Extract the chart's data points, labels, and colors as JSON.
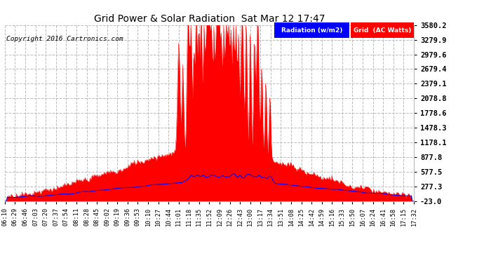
{
  "title": "Grid Power & Solar Radiation  Sat Mar 12 17:47",
  "copyright": "Copyright 2016 Cartronics.com",
  "background_color": "#ffffff",
  "plot_background": "#ffffff",
  "grid_color": "#bbbbbb",
  "ylim": [
    -23.0,
    3580.2
  ],
  "yticks": [
    -23.0,
    277.3,
    577.5,
    877.8,
    1178.1,
    1478.3,
    1778.6,
    2078.8,
    2379.1,
    2679.4,
    2979.6,
    3279.9,
    3580.2
  ],
  "solar_fill_color": "#ff0000",
  "solar_line_color": "#ff0000",
  "grid_line_color": "#0000ff",
  "legend_radiation_bg": "#0000ff",
  "legend_grid_bg": "#ff0000",
  "legend_radiation_text": "Radiation (w/m2)",
  "legend_grid_text": "Grid  (AC Watts)",
  "xtick_labels": [
    "06:10",
    "06:29",
    "06:46",
    "07:03",
    "07:20",
    "07:37",
    "07:54",
    "08:11",
    "08:28",
    "08:45",
    "09:02",
    "09:19",
    "09:36",
    "09:53",
    "10:10",
    "10:27",
    "10:44",
    "11:01",
    "11:18",
    "11:35",
    "11:52",
    "12:09",
    "12:26",
    "12:43",
    "13:00",
    "13:17",
    "13:34",
    "13:51",
    "14:08",
    "14:25",
    "14:42",
    "14:59",
    "15:16",
    "15:33",
    "15:50",
    "16:07",
    "16:24",
    "16:41",
    "16:58",
    "17:15",
    "17:32"
  ]
}
